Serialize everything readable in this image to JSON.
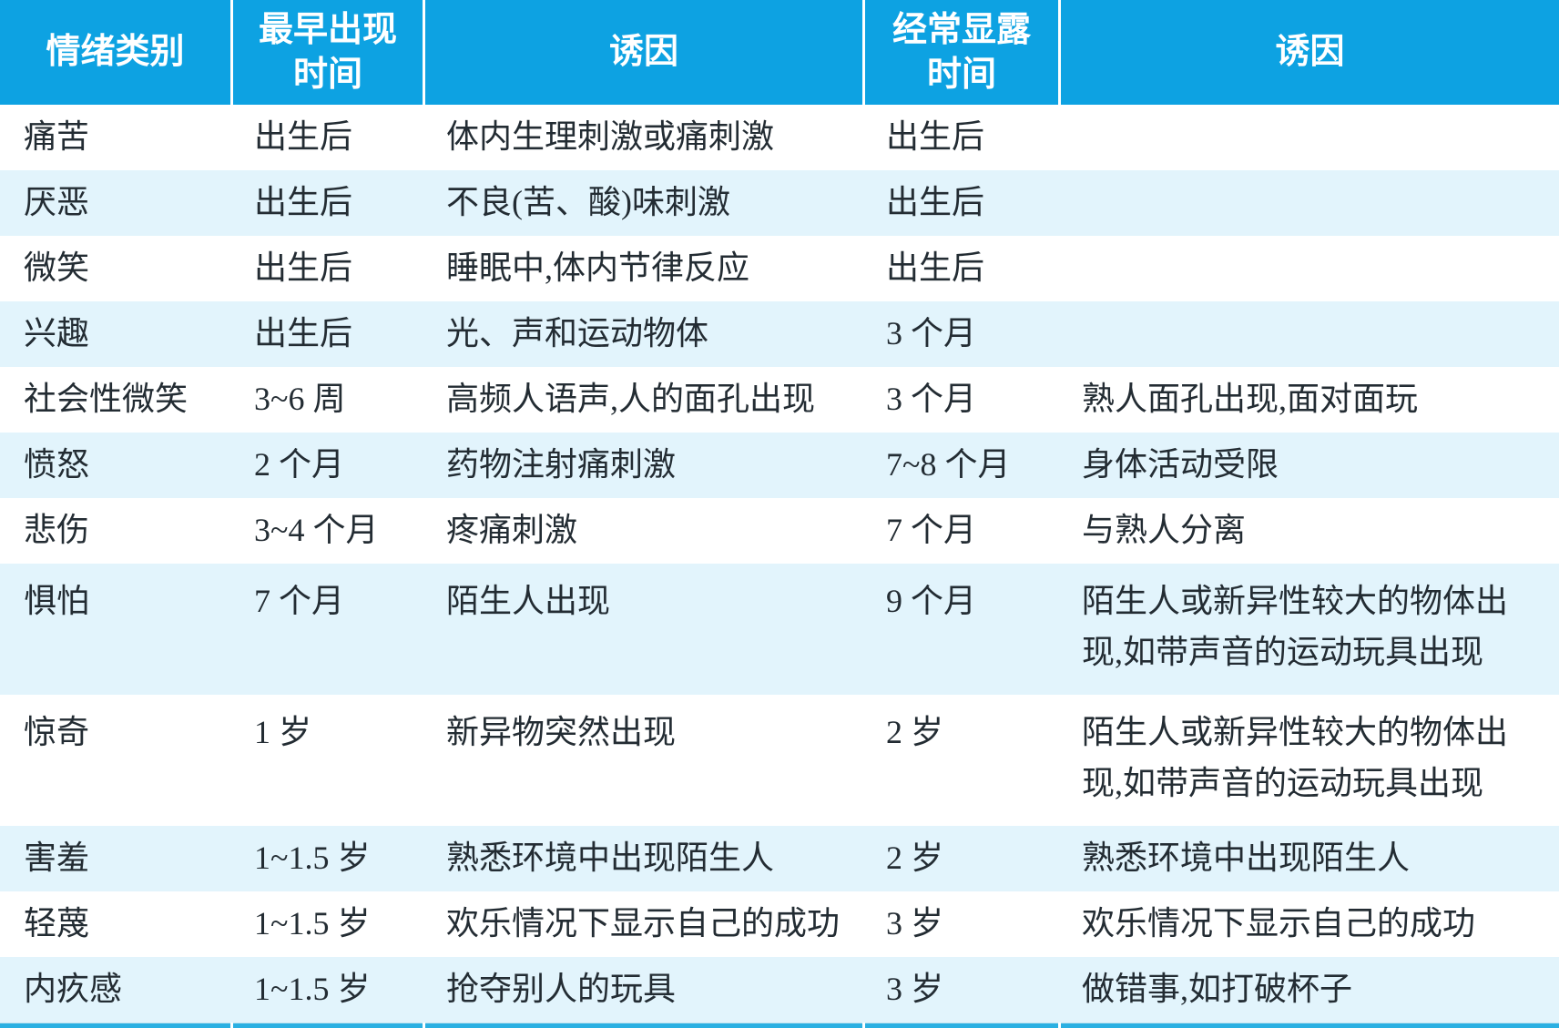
{
  "table": {
    "columns": [
      {
        "label": "情绪类别"
      },
      {
        "label": "最早出现\n时间"
      },
      {
        "label": "诱因"
      },
      {
        "label": "经常显露\n时间"
      },
      {
        "label": "诱因"
      }
    ],
    "rows": [
      {
        "emotion": "痛苦",
        "earliest": "出生后",
        "trigger": "体内生理刺激或痛刺激",
        "frequent": "出生后",
        "trigger2": ""
      },
      {
        "emotion": "厌恶",
        "earliest": "出生后",
        "trigger": "不良(苦、酸)味刺激",
        "frequent": "出生后",
        "trigger2": ""
      },
      {
        "emotion": "微笑",
        "earliest": "出生后",
        "trigger": "睡眠中,体内节律反应",
        "frequent": "出生后",
        "trigger2": ""
      },
      {
        "emotion": "兴趣",
        "earliest": "出生后",
        "trigger": "光、声和运动物体",
        "frequent": "3 个月",
        "trigger2": ""
      },
      {
        "emotion": "社会性微笑",
        "earliest": "3~6 周",
        "trigger": "高频人语声,人的面孔出现",
        "frequent": "3 个月",
        "trigger2": "熟人面孔出现,面对面玩"
      },
      {
        "emotion": "愤怒",
        "earliest": "2 个月",
        "trigger": "药物注射痛刺激",
        "frequent": "7~8 个月",
        "trigger2": "身体活动受限"
      },
      {
        "emotion": "悲伤",
        "earliest": "3~4 个月",
        "trigger": "疼痛刺激",
        "frequent": "7 个月",
        "trigger2": "与熟人分离"
      },
      {
        "emotion": "惧怕",
        "earliest": "7 个月",
        "trigger": "陌生人出现",
        "frequent": "9 个月",
        "trigger2": "陌生人或新异性较大的物体出\n现,如带声音的运动玩具出现"
      },
      {
        "emotion": "惊奇",
        "earliest": "1 岁",
        "trigger": "新异物突然出现",
        "frequent": "2 岁",
        "trigger2": "陌生人或新异性较大的物体出\n现,如带声音的运动玩具出现"
      },
      {
        "emotion": "害羞",
        "earliest": "1~1.5 岁",
        "trigger": "熟悉环境中出现陌生人",
        "frequent": "2 岁",
        "trigger2": "熟悉环境中出现陌生人"
      },
      {
        "emotion": "轻蔑",
        "earliest": "1~1.5 岁",
        "trigger": "欢乐情况下显示自己的成功",
        "frequent": "3 岁",
        "trigger2": "欢乐情况下显示自己的成功"
      },
      {
        "emotion": "内疚感",
        "earliest": "1~1.5 岁",
        "trigger": "抢夺别人的玩具",
        "frequent": "3 岁",
        "trigger2": "做错事,如打破杯子"
      }
    ],
    "colors": {
      "header_bg": "#0da2e2",
      "header_text": "#ffffff",
      "row_bg": "#ffffff",
      "row_alt_bg": "#e2f4fc",
      "body_text": "#232c33",
      "bottom_bar": "#2bb0e2",
      "separator": "#ffffff"
    }
  }
}
